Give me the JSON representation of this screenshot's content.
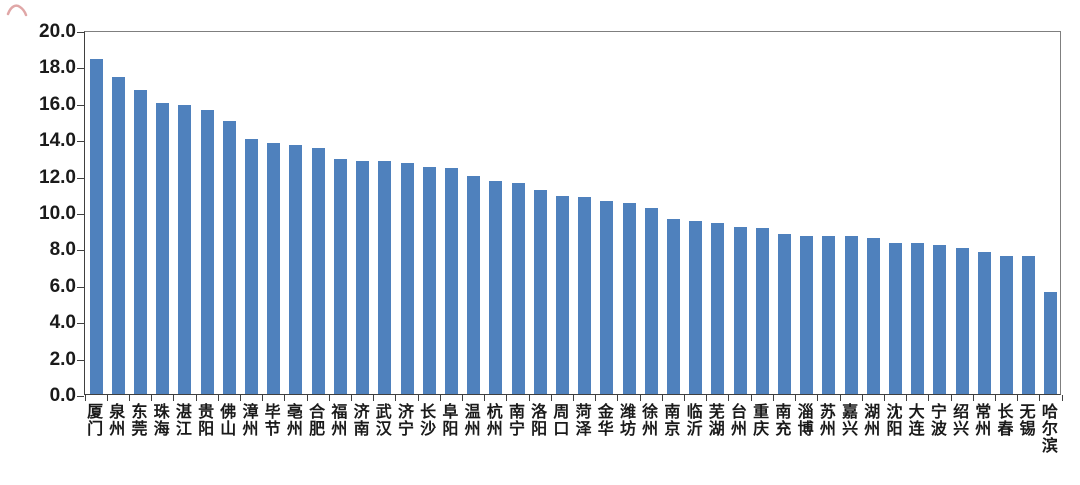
{
  "chart_data": {
    "type": "bar",
    "title": "",
    "xlabel": "",
    "ylabel": "",
    "categories": [
      "厦门",
      "泉州",
      "东莞",
      "珠海",
      "湛江",
      "贵阳",
      "佛山",
      "漳州",
      "毕节",
      "亳州",
      "合肥",
      "福州",
      "济南",
      "武汉",
      "济宁",
      "长沙",
      "阜阳",
      "温州",
      "杭州",
      "南宁",
      "洛阳",
      "周口",
      "菏泽",
      "金华",
      "潍坊",
      "徐州",
      "南京",
      "临沂",
      "芜湖",
      "台州",
      "重庆",
      "南充",
      "淄博",
      "苏州",
      "嘉兴",
      "湖州",
      "沈阳",
      "大连",
      "宁波",
      "绍兴",
      "常州",
      "长春",
      "无锡",
      "哈尔滨"
    ],
    "values": [
      18.4,
      17.4,
      16.7,
      16.0,
      15.9,
      15.6,
      15.0,
      14.0,
      13.8,
      13.7,
      13.5,
      12.9,
      12.8,
      12.8,
      12.7,
      12.5,
      12.4,
      12.0,
      11.7,
      11.6,
      11.2,
      10.9,
      10.8,
      10.6,
      10.5,
      10.2,
      9.6,
      9.5,
      9.4,
      9.2,
      9.1,
      8.8,
      8.7,
      8.7,
      8.7,
      8.6,
      8.3,
      8.3,
      8.2,
      8.0,
      7.8,
      7.6,
      7.6,
      5.6
    ],
    "ylim": [
      0,
      20
    ],
    "ytick_step": 2,
    "ytick_labels": [
      "0.0",
      "2.0",
      "4.0",
      "6.0",
      "8.0",
      "10.0",
      "12.0",
      "14.0",
      "16.0",
      "18.0",
      "20.0"
    ],
    "grid": false,
    "legend_position": "none",
    "bar_color": "#4F81BD",
    "axis_color": "#404040",
    "border_color": "#7f7f7f",
    "artifact_color": "#C86060"
  }
}
